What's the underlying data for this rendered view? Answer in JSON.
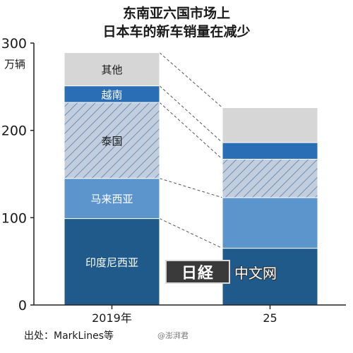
{
  "chart_data": {
    "type": "bar",
    "stacked": true,
    "title": "东南亚六国市场上",
    "subtitle": "日本车的新车销量在减少",
    "unit": "万辆",
    "categories": [
      "2019年",
      "25"
    ],
    "ylim": [
      0,
      300
    ],
    "yticks": [
      0,
      100,
      200,
      300
    ],
    "grid": false,
    "series": [
      {
        "name": "印度尼西亚",
        "values": [
          99,
          65
        ],
        "color": "#1f5a8a",
        "hatched": false
      },
      {
        "name": "马来西亚",
        "values": [
          46,
          58
        ],
        "color": "#5b95cc",
        "hatched": false
      },
      {
        "name": "泰国",
        "values": [
          87,
          44
        ],
        "color": "#c2cedd",
        "hatched": true
      },
      {
        "name": "越南",
        "values": [
          19,
          19
        ],
        "color": "#2a6eb5",
        "hatched": false
      },
      {
        "name": "其他",
        "values": [
          38,
          40
        ],
        "color": "#d6d6d6",
        "hatched": false
      }
    ],
    "connectors": "dashed",
    "source": "出处：MarkLines等"
  },
  "watermark": {
    "seal": "日経",
    "text": "中文网"
  },
  "credit": "@澎湃君"
}
